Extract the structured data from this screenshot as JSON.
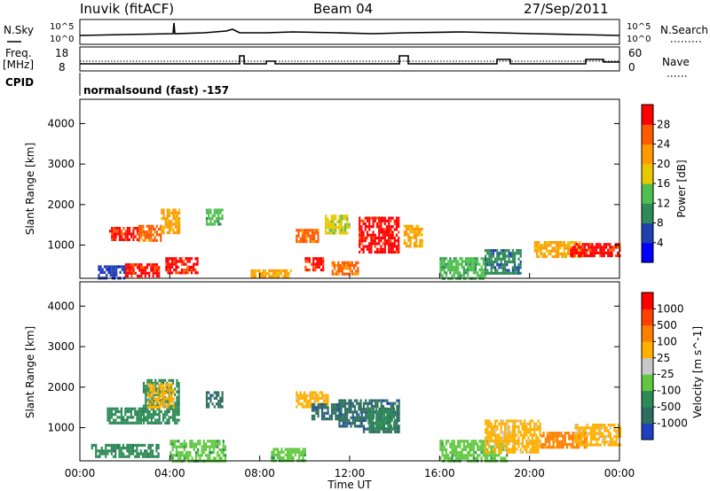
{
  "header": {
    "station": "Inuvik (fitACF)",
    "beam": "Beam 04",
    "date": "27/Sep/2011"
  },
  "strip": {
    "nsky_label": "N.Sky",
    "nsky_ticks": [
      "10^5",
      "10^0"
    ],
    "nsearch_label": "N.Search",
    "nsearch_ticks": [
      "10^5",
      "10^0"
    ],
    "freq_label_1": "Freq.",
    "freq_label_2": "[MHz]",
    "freq_ticks": [
      "18",
      "8"
    ],
    "nave_label": "Nave",
    "nave_ticks": [
      "60",
      "0"
    ],
    "cpid_label": "CPID",
    "cpid_text": "normalsound (fast) -157"
  },
  "chart_data": [
    {
      "type": "heatmap",
      "name": "power",
      "ylabel": "Slant Range [km]",
      "ylim": [
        180,
        4600
      ],
      "yticks": [
        "1000",
        "2000",
        "3000",
        "4000"
      ],
      "xlim": [
        0,
        24
      ],
      "colorbar_label": "Power [dB]",
      "colorbar_ticks": [
        "4",
        "8",
        "12",
        "16",
        "20",
        "24",
        "28"
      ],
      "colorbar_colors": [
        "#0000ff",
        "#2040b0",
        "#2e8b57",
        "#4fbf4f",
        "#e8c800",
        "#ff9a00",
        "#ff5a00",
        "#ff0000"
      ],
      "blobs": [
        {
          "t": [
            1.3,
            2.6
          ],
          "r": [
            1150,
            1450
          ],
          "level": 28
        },
        {
          "t": [
            2.6,
            3.6
          ],
          "r": [
            1100,
            1500
          ],
          "level": 24
        },
        {
          "t": [
            3.6,
            4.4
          ],
          "r": [
            1300,
            1900
          ],
          "level": 20
        },
        {
          "t": [
            2.0,
            3.5
          ],
          "r": [
            250,
            550
          ],
          "level": 28
        },
        {
          "t": [
            3.8,
            5.2
          ],
          "r": [
            300,
            700
          ],
          "level": 28
        },
        {
          "t": [
            5.6,
            6.3
          ],
          "r": [
            1500,
            1900
          ],
          "level": 12
        },
        {
          "t": [
            7.6,
            9.4
          ],
          "r": [
            200,
            400
          ],
          "level": 20
        },
        {
          "t": [
            9.6,
            10.6
          ],
          "r": [
            1100,
            1400
          ],
          "level": 24
        },
        {
          "t": [
            10.0,
            10.8
          ],
          "r": [
            400,
            700
          ],
          "level": 28
        },
        {
          "t": [
            10.9,
            12.0
          ],
          "r": [
            1300,
            1750
          ],
          "level": 16
        },
        {
          "t": [
            11.2,
            12.4
          ],
          "r": [
            300,
            600
          ],
          "level": 24
        },
        {
          "t": [
            12.4,
            14.2
          ],
          "r": [
            800,
            1700
          ],
          "level": 28
        },
        {
          "t": [
            14.4,
            15.2
          ],
          "r": [
            1000,
            1500
          ],
          "level": 20
        },
        {
          "t": [
            16.0,
            18.0
          ],
          "r": [
            200,
            700
          ],
          "level": 12
        },
        {
          "t": [
            18.0,
            19.6
          ],
          "r": [
            300,
            900
          ],
          "level": 8
        },
        {
          "t": [
            20.2,
            22.2
          ],
          "r": [
            700,
            1100
          ],
          "level": 20
        },
        {
          "t": [
            21.8,
            24.0
          ],
          "r": [
            700,
            1050
          ],
          "level": 28
        },
        {
          "t": [
            0.8,
            2.0
          ],
          "r": [
            200,
            500
          ],
          "level": 4
        }
      ]
    },
    {
      "type": "heatmap",
      "name": "velocity",
      "ylabel": "Slant Range [km]",
      "ylim": [
        180,
        4600
      ],
      "yticks": [
        "1000",
        "2000",
        "3000",
        "4000"
      ],
      "xlabel": "Time UT",
      "xlim": [
        0,
        24
      ],
      "xticks": [
        "00:00",
        "04:00",
        "08:00",
        "12:00",
        "16:00",
        "20:00",
        "00:00"
      ],
      "colorbar_label": "Velocity [m s^-1]",
      "colorbar_ticks": [
        "1000",
        "500",
        "100",
        "25",
        "-25",
        "-100",
        "-500",
        "-1000"
      ],
      "colorbar_colors": [
        "#2040c0",
        "#2e6e60",
        "#2e8b57",
        "#60c840",
        "#c8c8c8",
        "#ffb000",
        "#ff8000",
        "#ff4000",
        "#ff0000"
      ],
      "blobs": [
        {
          "t": [
            1.2,
            2.8
          ],
          "r": [
            1100,
            1500
          ],
          "level": 100
        },
        {
          "t": [
            2.8,
            4.4
          ],
          "r": [
            1100,
            2200
          ],
          "level": 100
        },
        {
          "t": [
            3.0,
            4.2
          ],
          "r": [
            1500,
            2100
          ],
          "level": -100
        },
        {
          "t": [
            5.6,
            6.3
          ],
          "r": [
            1500,
            1900
          ],
          "level": 500
        },
        {
          "t": [
            4.0,
            6.5
          ],
          "r": [
            200,
            700
          ],
          "level": 25
        },
        {
          "t": [
            8.5,
            10.0
          ],
          "r": [
            200,
            500
          ],
          "level": 25
        },
        {
          "t": [
            9.6,
            11.0
          ],
          "r": [
            1500,
            1900
          ],
          "level": -100
        },
        {
          "t": [
            10.3,
            11.5
          ],
          "r": [
            1200,
            1600
          ],
          "level": 500
        },
        {
          "t": [
            11.5,
            12.5
          ],
          "r": [
            1000,
            1700
          ],
          "level": 500
        },
        {
          "t": [
            12.5,
            14.2
          ],
          "r": [
            900,
            1700
          ],
          "level": 500
        },
        {
          "t": [
            12.8,
            14.0
          ],
          "r": [
            1000,
            1500
          ],
          "level": 100
        },
        {
          "t": [
            0.5,
            3.5
          ],
          "r": [
            250,
            600
          ],
          "level": 100
        },
        {
          "t": [
            16.0,
            19.0
          ],
          "r": [
            200,
            700
          ],
          "level": 25
        },
        {
          "t": [
            18.0,
            20.5
          ],
          "r": [
            400,
            1200
          ],
          "level": -100
        },
        {
          "t": [
            20.5,
            22.5
          ],
          "r": [
            500,
            900
          ],
          "level": -500
        },
        {
          "t": [
            22.0,
            24.0
          ],
          "r": [
            600,
            1100
          ],
          "level": -100
        }
      ]
    }
  ]
}
